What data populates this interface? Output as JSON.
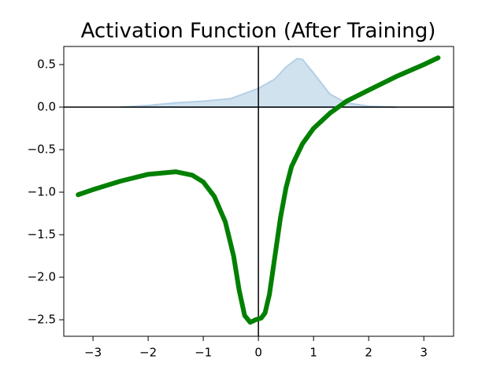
{
  "chart_data": {
    "type": "line",
    "title": "Activation Function (After Training)",
    "xlim": [
      -3.53,
      3.54
    ],
    "ylim": [
      -2.694,
      0.713
    ],
    "xticks": [
      {
        "value": -3,
        "label": "−3"
      },
      {
        "value": -2,
        "label": "−2"
      },
      {
        "value": -1,
        "label": "−1"
      },
      0,
      1,
      2,
      3
    ],
    "yticks": [
      {
        "value": 0.5,
        "label": "0.5"
      },
      {
        "value": 0,
        "label": "0.0"
      },
      {
        "value": -0.5,
        "label": "−0.5"
      },
      {
        "value": -1,
        "label": "−1.0"
      },
      {
        "value": -1.5,
        "label": "−1.5"
      },
      {
        "value": -2,
        "label": "−2.0"
      },
      {
        "value": -2.5,
        "label": "−2.5"
      }
    ],
    "hline": 0,
    "vline": 0,
    "density": {
      "color": "#b3cfe5",
      "x": [
        -2.5,
        -2,
        -1.5,
        -1,
        -0.5,
        0,
        0.3,
        0.5,
        0.7,
        0.8,
        1.0,
        1.3,
        1.6,
        2,
        2.5
      ],
      "values": [
        0,
        0.02,
        0.05,
        0.07,
        0.1,
        0.22,
        0.33,
        0.47,
        0.57,
        0.56,
        0.4,
        0.15,
        0.05,
        0.01,
        0
      ]
    },
    "series": [
      {
        "color": "#008000",
        "x": [
          -3.27,
          -3,
          -2.5,
          -2,
          -1.5,
          -1.2,
          -1,
          -0.8,
          -0.6,
          -0.45,
          -0.35,
          -0.25,
          -0.15,
          -0.05,
          0.05,
          0.12,
          0.2,
          0.3,
          0.4,
          0.5,
          0.6,
          0.8,
          1.0,
          1.3,
          1.6,
          2.0,
          2.5,
          3.0,
          3.26
        ],
        "values": [
          -1.03,
          -0.97,
          -0.87,
          -0.79,
          -0.76,
          -0.8,
          -0.88,
          -1.05,
          -1.35,
          -1.75,
          -2.15,
          -2.45,
          -2.53,
          -2.5,
          -2.48,
          -2.42,
          -2.2,
          -1.75,
          -1.3,
          -0.95,
          -0.7,
          -0.43,
          -0.25,
          -0.07,
          0.07,
          0.2,
          0.36,
          0.5,
          0.58
        ]
      }
    ]
  }
}
